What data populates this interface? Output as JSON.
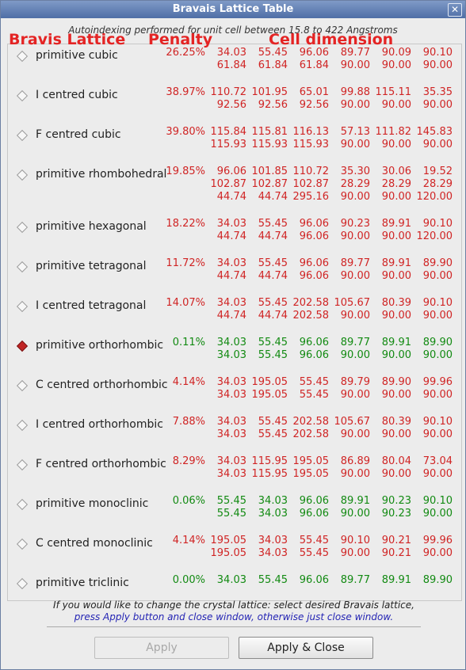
{
  "window": {
    "title": "Bravais Lattice Table",
    "close_glyph": "✕"
  },
  "subtitle": "Autoindexing performed for unit cell between 15.8 to 422 Angstroms",
  "headers": {
    "lattice": "Bravis Lattice",
    "penalty": "Penalty",
    "cell": "Cell dimension"
  },
  "colors": {
    "red": "#d02424",
    "green": "#128a12",
    "header": "#e42424",
    "note_blue": "#2424b4"
  },
  "rows": [
    {
      "name": "primitive cubic",
      "penalty": "26.25%",
      "color": "red",
      "selected": false,
      "values": [
        [
          "34.03",
          "55.45",
          "96.06",
          "89.77",
          "90.09",
          "90.10"
        ],
        [
          "61.84",
          "61.84",
          "61.84",
          "90.00",
          "90.00",
          "90.00"
        ]
      ]
    },
    {
      "name": "I centred cubic",
      "penalty": "38.97%",
      "color": "red",
      "selected": false,
      "values": [
        [
          "110.72",
          "101.95",
          "65.01",
          "99.88",
          "115.11",
          "35.35"
        ],
        [
          "92.56",
          "92.56",
          "92.56",
          "90.00",
          "90.00",
          "90.00"
        ]
      ]
    },
    {
      "name": "F centred cubic",
      "penalty": "39.80%",
      "color": "red",
      "selected": false,
      "values": [
        [
          "115.84",
          "115.81",
          "116.13",
          "57.13",
          "111.82",
          "145.83"
        ],
        [
          "115.93",
          "115.93",
          "115.93",
          "90.00",
          "90.00",
          "90.00"
        ]
      ]
    },
    {
      "name": "primitive rhombohedral",
      "penalty": "19.85%",
      "color": "red",
      "selected": false,
      "values": [
        [
          "96.06",
          "101.85",
          "110.72",
          "35.30",
          "30.06",
          "19.52"
        ],
        [
          "102.87",
          "102.87",
          "102.87",
          "28.29",
          "28.29",
          "28.29"
        ],
        [
          "44.74",
          "44.74",
          "295.16",
          "90.00",
          "90.00",
          "120.00"
        ]
      ]
    },
    {
      "name": "primitive hexagonal",
      "penalty": "18.22%",
      "color": "red",
      "selected": false,
      "values": [
        [
          "34.03",
          "55.45",
          "96.06",
          "90.23",
          "89.91",
          "90.10"
        ],
        [
          "44.74",
          "44.74",
          "96.06",
          "90.00",
          "90.00",
          "120.00"
        ]
      ]
    },
    {
      "name": "primitive tetragonal",
      "penalty": "11.72%",
      "color": "red",
      "selected": false,
      "values": [
        [
          "34.03",
          "55.45",
          "96.06",
          "89.77",
          "89.91",
          "89.90"
        ],
        [
          "44.74",
          "44.74",
          "96.06",
          "90.00",
          "90.00",
          "90.00"
        ]
      ]
    },
    {
      "name": "I centred tetragonal",
      "penalty": "14.07%",
      "color": "red",
      "selected": false,
      "values": [
        [
          "34.03",
          "55.45",
          "202.58",
          "105.67",
          "80.39",
          "90.10"
        ],
        [
          "44.74",
          "44.74",
          "202.58",
          "90.00",
          "90.00",
          "90.00"
        ]
      ]
    },
    {
      "name": "primitive orthorhombic",
      "penalty": "0.11%",
      "color": "green",
      "selected": true,
      "values": [
        [
          "34.03",
          "55.45",
          "96.06",
          "89.77",
          "89.91",
          "89.90"
        ],
        [
          "34.03",
          "55.45",
          "96.06",
          "90.00",
          "90.00",
          "90.00"
        ]
      ]
    },
    {
      "name": "C centred orthorhombic",
      "penalty": "4.14%",
      "color": "red",
      "selected": false,
      "values": [
        [
          "34.03",
          "195.05",
          "55.45",
          "89.79",
          "89.90",
          "99.96"
        ],
        [
          "34.03",
          "195.05",
          "55.45",
          "90.00",
          "90.00",
          "90.00"
        ]
      ]
    },
    {
      "name": "I centred orthorhombic",
      "penalty": "7.88%",
      "color": "red",
      "selected": false,
      "values": [
        [
          "34.03",
          "55.45",
          "202.58",
          "105.67",
          "80.39",
          "90.10"
        ],
        [
          "34.03",
          "55.45",
          "202.58",
          "90.00",
          "90.00",
          "90.00"
        ]
      ]
    },
    {
      "name": "F centred orthorhombic",
      "penalty": "8.29%",
      "color": "red",
      "selected": false,
      "values": [
        [
          "34.03",
          "115.95",
          "195.05",
          "86.89",
          "80.04",
          "73.04"
        ],
        [
          "34.03",
          "115.95",
          "195.05",
          "90.00",
          "90.00",
          "90.00"
        ]
      ]
    },
    {
      "name": "primitive monoclinic",
      "penalty": "0.06%",
      "color": "green",
      "selected": false,
      "values": [
        [
          "55.45",
          "34.03",
          "96.06",
          "89.91",
          "90.23",
          "90.10"
        ],
        [
          "55.45",
          "34.03",
          "96.06",
          "90.00",
          "90.23",
          "90.00"
        ]
      ]
    },
    {
      "name": "C centred monoclinic",
      "penalty": "4.14%",
      "color": "red",
      "selected": false,
      "values": [
        [
          "195.05",
          "34.03",
          "55.45",
          "90.10",
          "90.21",
          "99.96"
        ],
        [
          "195.05",
          "34.03",
          "55.45",
          "90.00",
          "90.21",
          "90.00"
        ]
      ]
    },
    {
      "name": "primitive triclinic",
      "penalty": "0.00%",
      "color": "green",
      "selected": false,
      "values": [
        [
          "34.03",
          "55.45",
          "96.06",
          "89.77",
          "89.91",
          "89.90"
        ]
      ]
    }
  ],
  "notes": {
    "line1": "If you would like to change the crystal lattice: select desired Bravais lattice,",
    "line2": "press Apply button and close window, otherwise just close window."
  },
  "buttons": {
    "apply": "Apply",
    "apply_close": "Apply & Close"
  }
}
